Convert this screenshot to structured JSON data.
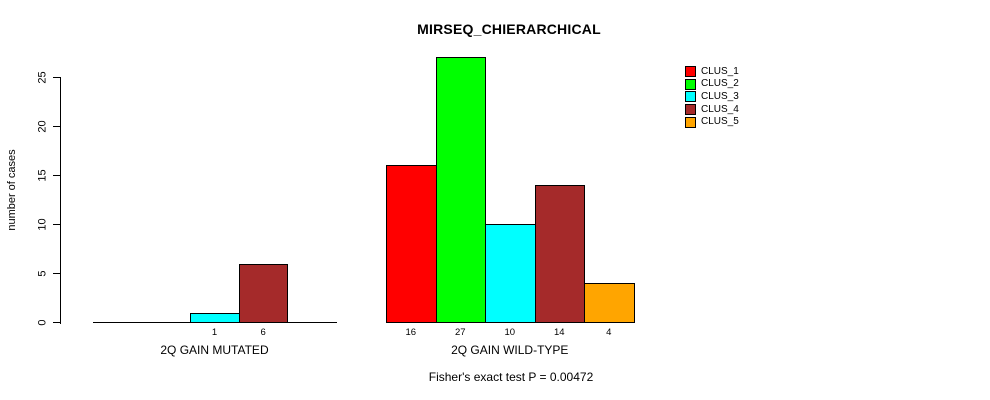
{
  "chart_data": {
    "type": "bar",
    "title": "MIRSEQ_CHIERARCHICAL",
    "ylabel": "number of cases",
    "xlabel": "",
    "ylim": [
      0,
      27
    ],
    "yticks": [
      0,
      5,
      10,
      15,
      20,
      25
    ],
    "grid": false,
    "legend_position": "top-right",
    "categories": [
      "2Q GAIN MUTATED",
      "2Q GAIN WILD-TYPE"
    ],
    "series": [
      {
        "name": "CLUS_1",
        "color": "#FF0000",
        "values": [
          0,
          16
        ]
      },
      {
        "name": "CLUS_2",
        "color": "#00FF00",
        "values": [
          0,
          27
        ]
      },
      {
        "name": "CLUS_3",
        "color": "#00FFFF",
        "values": [
          1,
          10
        ]
      },
      {
        "name": "CLUS_4",
        "color": "#A52A2A",
        "values": [
          6,
          14
        ]
      },
      {
        "name": "CLUS_5",
        "color": "#FFA500",
        "values": [
          0,
          4
        ]
      }
    ],
    "bar_value_labels": {
      "note_rule": "each nonzero bar is labeled with its value below the baseline",
      "2Q GAIN MUTATED": [
        "1",
        "6"
      ],
      "2Q GAIN WILD-TYPE": [
        "16",
        "27",
        "10",
        "14",
        "4"
      ]
    },
    "annotation": "Fisher's exact test P = 0.00472",
    "axis_color": "#000000",
    "bar_border_color": "#000000",
    "background_color": "#FFFFFF"
  }
}
